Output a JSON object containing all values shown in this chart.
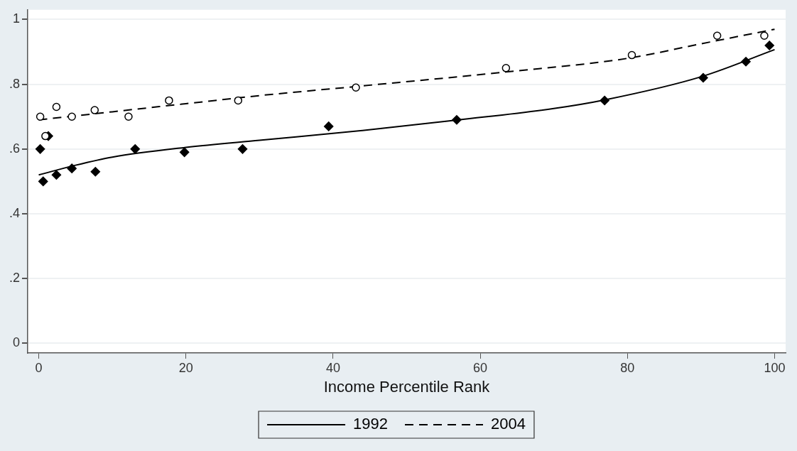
{
  "chart_data": {
    "type": "scatter",
    "xlabel": "Income Percentile Rank",
    "xlim": [
      -1.5,
      101.5
    ],
    "xticks": [
      0,
      20,
      40,
      60,
      80,
      100
    ],
    "ylim": [
      -0.03,
      1.03
    ],
    "yticks": [
      0,
      {
        "value": 0.2,
        "label": ".2"
      },
      {
        "value": 0.4,
        "label": ".4"
      },
      {
        "value": 0.6,
        "label": ".6"
      },
      {
        "value": 0.8,
        "label": ".8"
      },
      1
    ],
    "grid": "y",
    "legend": "bottom",
    "series": [
      {
        "type": "scatter",
        "marker": "diamond",
        "color": "#000000",
        "x": [
          0.2,
          0.6,
          1.3,
          2.4,
          4.5,
          7.7,
          13.1,
          19.8,
          27.7,
          39.4,
          56.8,
          76.9,
          90.3,
          96.1,
          99.3
        ],
        "values": [
          0.6,
          0.5,
          0.64,
          0.52,
          0.54,
          0.53,
          0.6,
          0.59,
          0.6,
          0.67,
          0.69,
          0.75,
          0.82,
          0.87,
          0.92
        ]
      },
      {
        "type": "scatter",
        "marker": "circle",
        "color": "#000000",
        "x": [
          0.2,
          0.9,
          2.4,
          4.5,
          7.6,
          12.2,
          17.7,
          27.1,
          43.1,
          63.5,
          80.6,
          92.2,
          98.6
        ],
        "values": [
          0.7,
          0.64,
          0.73,
          0.7,
          0.72,
          0.7,
          0.75,
          0.75,
          0.79,
          0.85,
          0.89,
          0.95,
          0.95
        ]
      },
      {
        "type": "line",
        "name": "1992",
        "marker": "none",
        "line_style": "solid",
        "color": "#000000",
        "x": [
          0,
          5,
          10,
          20,
          30,
          44,
          57,
          70,
          77,
          90,
          100
        ],
        "values": [
          0.52,
          0.55,
          0.575,
          0.605,
          0.627,
          0.657,
          0.69,
          0.725,
          0.752,
          0.823,
          0.907
        ]
      },
      {
        "type": "line",
        "name": "2004",
        "marker": "none",
        "line_style": "dashed",
        "color": "#000000",
        "x": [
          0,
          10,
          20,
          30,
          44,
          63.5,
          80,
          90,
          100
        ],
        "values": [
          0.69,
          0.715,
          0.74,
          0.765,
          0.795,
          0.838,
          0.88,
          0.925,
          0.97
        ]
      }
    ]
  }
}
